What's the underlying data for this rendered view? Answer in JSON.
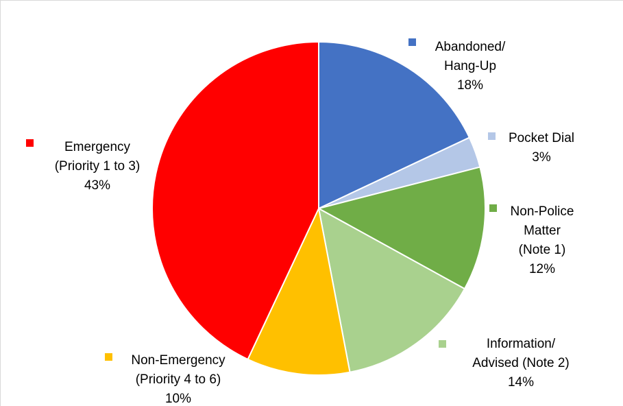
{
  "chart_data": {
    "type": "pie",
    "start_angle_deg": 0,
    "direction": "clockwise",
    "slices": [
      {
        "label_lines": [
          "Abandoned/",
          "Hang-Up"
        ],
        "percent_label": "18%",
        "value": 18,
        "color": "#4472C4"
      },
      {
        "label_lines": [
          "Pocket Dial"
        ],
        "percent_label": "3%",
        "value": 3,
        "color": "#B4C7E7"
      },
      {
        "label_lines": [
          "Non-Police",
          "Matter",
          "(Note 1)"
        ],
        "percent_label": "12%",
        "value": 12,
        "color": "#70AD47"
      },
      {
        "label_lines": [
          "Information/",
          "Advised (Note 2)"
        ],
        "percent_label": "14%",
        "value": 14,
        "color": "#A9D18E"
      },
      {
        "label_lines": [
          "Non-Emergency",
          "(Priority 4 to 6)"
        ],
        "percent_label": "10%",
        "value": 10,
        "color": "#FFC000"
      },
      {
        "label_lines": [
          "Emergency",
          "(Priority 1 to 3)"
        ],
        "percent_label": "43%",
        "value": 43,
        "color": "#FF0000"
      }
    ],
    "title": "",
    "legend": "data labels beside slices"
  }
}
